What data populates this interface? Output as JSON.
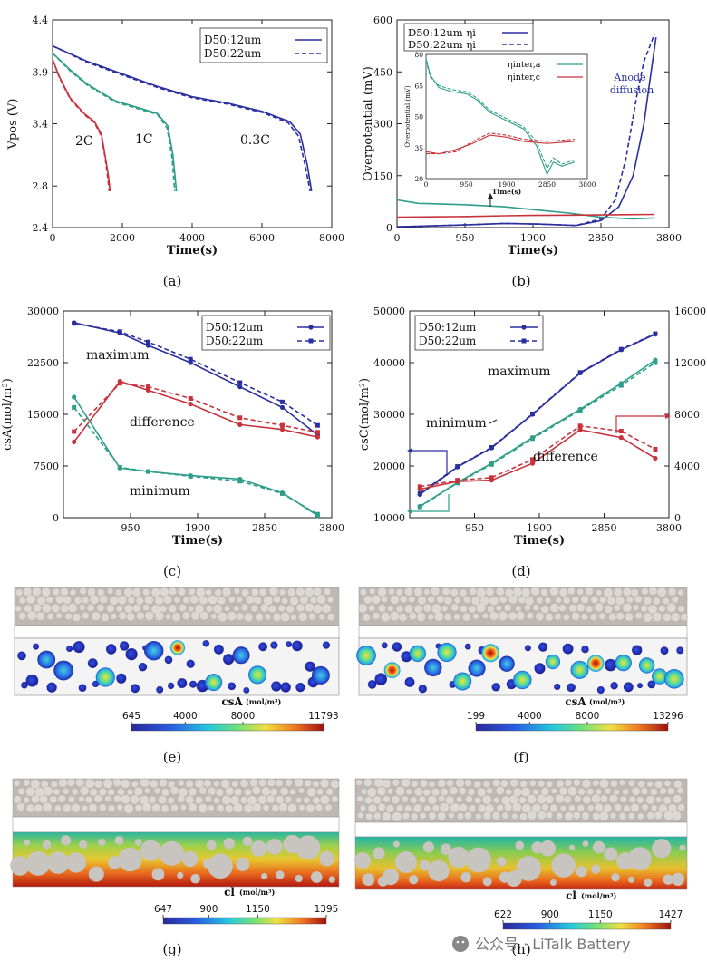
{
  "figure": {
    "panels": [
      "(a)",
      "(b)",
      "(c)",
      "(d)",
      "(e)",
      "(f)",
      "(g)",
      "(h)"
    ],
    "watermark": "公众号 · LiTalk Battery",
    "colors": {
      "blue": "#2a2fa0",
      "teal": "#2e9e8a",
      "red": "#c8323c",
      "grey": "#d0ccc8"
    }
  },
  "chart_data": [
    {
      "id": "a",
      "type": "line",
      "xlabel": "Time(s)",
      "ylabel": "Vpos (V)",
      "xlim": [
        0,
        8000
      ],
      "ylim": [
        2.4,
        4.4
      ],
      "xticks": [
        0,
        2000,
        4000,
        6000,
        8000
      ],
      "yticks": [
        2.4,
        2.8,
        3.4,
        3.9,
        4.4
      ],
      "legend": [
        "D50:12um",
        "D50:22um"
      ],
      "annotations": [
        "2C",
        "1C",
        "0.3C"
      ],
      "series": [
        {
          "name": "2C D50:12um",
          "color": "red",
          "x": [
            0,
            200,
            500,
            900,
            1200,
            1400,
            1500,
            1600,
            1650
          ],
          "y": [
            4.02,
            3.85,
            3.65,
            3.5,
            3.42,
            3.3,
            3.1,
            2.9,
            2.75
          ]
        },
        {
          "name": "2C D50:22um",
          "color": "red",
          "dashed": true,
          "x": [
            0,
            200,
            500,
            900,
            1200,
            1400,
            1500,
            1580,
            1620
          ],
          "y": [
            4.02,
            3.84,
            3.64,
            3.49,
            3.41,
            3.28,
            3.08,
            2.88,
            2.75
          ]
        },
        {
          "name": "1C D50:12um",
          "color": "teal",
          "x": [
            0,
            500,
            1000,
            1800,
            2500,
            3000,
            3300,
            3450,
            3550
          ],
          "y": [
            4.08,
            3.92,
            3.78,
            3.62,
            3.55,
            3.5,
            3.38,
            3.1,
            2.75
          ]
        },
        {
          "name": "1C D50:22um",
          "color": "teal",
          "dashed": true,
          "x": [
            0,
            500,
            1000,
            1800,
            2500,
            3000,
            3280,
            3420,
            3500
          ],
          "y": [
            4.08,
            3.91,
            3.77,
            3.61,
            3.54,
            3.49,
            3.36,
            3.08,
            2.75
          ]
        },
        {
          "name": "0.3C D50:12um",
          "color": "blue",
          "x": [
            0,
            1000,
            2000,
            3000,
            4000,
            5000,
            6000,
            6800,
            7100,
            7300,
            7420
          ],
          "y": [
            4.15,
            4.0,
            3.88,
            3.76,
            3.66,
            3.6,
            3.52,
            3.42,
            3.3,
            3.0,
            2.75
          ]
        },
        {
          "name": "0.3C D50:22um",
          "color": "blue",
          "dashed": true,
          "x": [
            0,
            1000,
            2000,
            3000,
            4000,
            5000,
            6000,
            6750,
            7050,
            7250,
            7380
          ],
          "y": [
            4.15,
            3.99,
            3.87,
            3.75,
            3.65,
            3.59,
            3.51,
            3.41,
            3.28,
            2.98,
            2.75
          ]
        }
      ]
    },
    {
      "id": "b",
      "type": "line",
      "xlabel": "Time(s)",
      "ylabel": "Overpotential (mV)",
      "xlim": [
        0,
        3800
      ],
      "ylim": [
        0,
        600
      ],
      "xticks": [
        0,
        950,
        1900,
        2850,
        3800
      ],
      "yticks": [
        0,
        150,
        300,
        450,
        600
      ],
      "legend": [
        "D50:12um ηi",
        "D50:22um ηi"
      ],
      "annotation": "Anode diffusion",
      "series": [
        {
          "name": "ηi 12um",
          "color": "blue",
          "x": [
            0,
            500,
            1000,
            1500,
            2000,
            2500,
            2850,
            3100,
            3300,
            3450,
            3550,
            3620
          ],
          "y": [
            2,
            5,
            8,
            12,
            10,
            6,
            20,
            60,
            150,
            300,
            450,
            550
          ]
        },
        {
          "name": "ηi 22um",
          "color": "blue",
          "dashed": true,
          "x": [
            0,
            500,
            1000,
            1500,
            2000,
            2500,
            2850,
            3050,
            3200,
            3350,
            3450,
            3600
          ],
          "y": [
            2,
            5,
            8,
            12,
            10,
            6,
            25,
            80,
            200,
            380,
            480,
            560
          ]
        },
        {
          "name": "ηinter,a",
          "color": "teal",
          "x": [
            0,
            300,
            950,
            1500,
            1900,
            2400,
            2850,
            3300,
            3600
          ],
          "y": [
            80,
            70,
            66,
            60,
            52,
            42,
            30,
            25,
            28
          ]
        },
        {
          "name": "ηinter,c",
          "color": "red",
          "x": [
            0,
            500,
            1000,
            1500,
            1900,
            2500,
            3000,
            3600
          ],
          "y": [
            30,
            31,
            32,
            34,
            35,
            36,
            37,
            38
          ]
        }
      ],
      "inset": {
        "xlabel": "Time(s)",
        "ylabel": "Overpotential (mV)",
        "xlim": [
          0,
          3800
        ],
        "ylim": [
          20,
          80
        ],
        "xticks": [
          0,
          950,
          1900,
          2850,
          3800
        ],
        "yticks": [
          20,
          35,
          50,
          65,
          80
        ],
        "legend": [
          "ηinter,a",
          "ηinter,c"
        ],
        "series": [
          {
            "name": "ηinter,a 12um",
            "color": "teal",
            "x": [
              0,
              100,
              300,
              600,
              950,
              1200,
              1500,
              1900,
              2300,
              2600,
              2850,
              3000,
              3200,
              3500
            ],
            "y": [
              78,
              70,
              64,
              62,
              61,
              58,
              52,
              48,
              44,
              36,
              22,
              28,
              26,
              28
            ]
          },
          {
            "name": "ηinter,a 22um",
            "color": "teal",
            "dashed": true,
            "x": [
              0,
              100,
              300,
              600,
              950,
              1200,
              1500,
              1900,
              2300,
              2600,
              2850,
              3000,
              3200,
              3500
            ],
            "y": [
              77,
              69,
              65,
              63,
              62,
              59,
              53,
              49,
              45,
              38,
              25,
              30,
              27,
              29
            ]
          },
          {
            "name": "ηinter,c 12um",
            "color": "red",
            "x": [
              0,
              300,
              700,
              1100,
              1500,
              1900,
              2300,
              2850,
              3500
            ],
            "y": [
              33,
              32,
              34,
              37,
              41,
              40,
              38,
              37,
              38
            ]
          },
          {
            "name": "ηinter,c 22um",
            "color": "red",
            "dashed": true,
            "x": [
              0,
              300,
              700,
              1100,
              1500,
              1900,
              2300,
              2850,
              3500
            ],
            "y": [
              32,
              32,
              33,
              38,
              42,
              41,
              39,
              38,
              39
            ]
          }
        ]
      }
    },
    {
      "id": "c",
      "type": "line",
      "xlabel": "Time(s)",
      "ylabel": "csA(mol/m³)",
      "xlim": [
        0,
        3800
      ],
      "ylim": [
        0,
        30000
      ],
      "xticks": [
        950,
        1900,
        2850,
        3800
      ],
      "yticks": [
        0,
        7500,
        15000,
        22500,
        30000
      ],
      "legend": [
        "D50:12um",
        "D50:22um"
      ],
      "annotations": [
        "maximum",
        "difference",
        "minimum"
      ],
      "series": [
        {
          "name": "max 12um",
          "color": "blue",
          "x": [
            150,
            800,
            1200,
            1800,
            2500,
            3100,
            3600
          ],
          "y": [
            28300,
            26800,
            25000,
            22500,
            19000,
            16000,
            12000
          ]
        },
        {
          "name": "max 22um",
          "color": "blue",
          "dashed": true,
          "x": [
            150,
            800,
            1200,
            1800,
            2500,
            3100,
            3600
          ],
          "y": [
            28200,
            27000,
            25500,
            23000,
            19600,
            16800,
            13400
          ]
        },
        {
          "name": "diff 12um",
          "color": "red",
          "x": [
            150,
            800,
            1200,
            1800,
            2500,
            3100,
            3600
          ],
          "y": [
            11000,
            19800,
            18500,
            16500,
            13500,
            12800,
            11700
          ]
        },
        {
          "name": "diff 22um",
          "color": "red",
          "dashed": true,
          "x": [
            150,
            800,
            1200,
            1800,
            2500,
            3100,
            3600
          ],
          "y": [
            12500,
            19500,
            19000,
            17300,
            14500,
            13400,
            12400
          ]
        },
        {
          "name": "min 12um",
          "color": "teal",
          "x": [
            150,
            800,
            1200,
            1800,
            2500,
            3100,
            3600
          ],
          "y": [
            17500,
            7200,
            6700,
            6100,
            5600,
            3600,
            300
          ]
        },
        {
          "name": "min 22um",
          "color": "teal",
          "dashed": true,
          "x": [
            150,
            800,
            1200,
            1800,
            2500,
            3100,
            3600
          ],
          "y": [
            16000,
            7300,
            6700,
            6000,
            5300,
            3500,
            500
          ]
        }
      ]
    },
    {
      "id": "d",
      "type": "line",
      "xlabel": "Time(s)",
      "ylabel": "csC(mol/m³)",
      "xlim": [
        0,
        3800
      ],
      "ylim": [
        10000,
        50000
      ],
      "y2lim": [
        0,
        16000
      ],
      "xticks": [
        950,
        1900,
        2850,
        3800
      ],
      "yticks": [
        10000,
        20000,
        30000,
        40000,
        50000
      ],
      "y2ticks": [
        0,
        4000,
        8000,
        12000,
        16000
      ],
      "legend": [
        "D50:12um",
        "D50:22um"
      ],
      "annotations": [
        "maximum",
        "minimum",
        "difference"
      ],
      "series": [
        {
          "name": "max 12um",
          "color": "blue",
          "x": [
            150,
            700,
            1200,
            1800,
            2500,
            3100,
            3600
          ],
          "y": [
            14500,
            19800,
            23500,
            30000,
            38000,
            42500,
            45500
          ]
        },
        {
          "name": "max 22um",
          "color": "blue",
          "dashed": true,
          "x": [
            150,
            700,
            1200,
            1800,
            2500,
            3100,
            3600
          ],
          "y": [
            14700,
            19900,
            23600,
            30100,
            38100,
            42600,
            45600
          ]
        },
        {
          "name": "min 12um",
          "color": "teal",
          "x": [
            150,
            700,
            1200,
            1800,
            2500,
            3100,
            3600
          ],
          "y": [
            12200,
            16800,
            20500,
            25500,
            31000,
            36000,
            40500
          ]
        },
        {
          "name": "min 22um",
          "color": "teal",
          "dashed": true,
          "x": [
            150,
            700,
            1200,
            1800,
            2500,
            3100,
            3600
          ],
          "y": [
            12100,
            16700,
            20300,
            25300,
            30800,
            35600,
            40000
          ]
        },
        {
          "name": "diff 12um",
          "color": "red",
          "axis": "y2",
          "x": [
            150,
            700,
            1200,
            1800,
            2500,
            3100,
            3600
          ],
          "y": [
            2200,
            2800,
            2900,
            4200,
            6800,
            6200,
            4600
          ]
        },
        {
          "name": "diff 22um",
          "color": "red",
          "dashed": true,
          "axis": "y2",
          "x": [
            150,
            700,
            1200,
            1800,
            2500,
            3100,
            3600
          ],
          "y": [
            2400,
            2900,
            3100,
            4500,
            7100,
            6700,
            5300
          ]
        }
      ]
    }
  ],
  "maps": {
    "e": {
      "label": "csA",
      "unit": "(mol/m³)",
      "min": "645",
      "t1": "4000",
      "t2": "8000",
      "max": "11793"
    },
    "f": {
      "label": "csA",
      "unit": "(mol/m³)",
      "min": "199",
      "t1": "4000",
      "t2": "8000",
      "max": "13296"
    },
    "g": {
      "label": "cl",
      "unit": "(mol/m³)",
      "min": "647",
      "t1": "900",
      "t2": "1150",
      "max": "1395"
    },
    "h": {
      "label": "cl",
      "unit": "(mol/m³)",
      "min": "622",
      "t1": "900",
      "t2": "1150",
      "max": "1427"
    }
  }
}
